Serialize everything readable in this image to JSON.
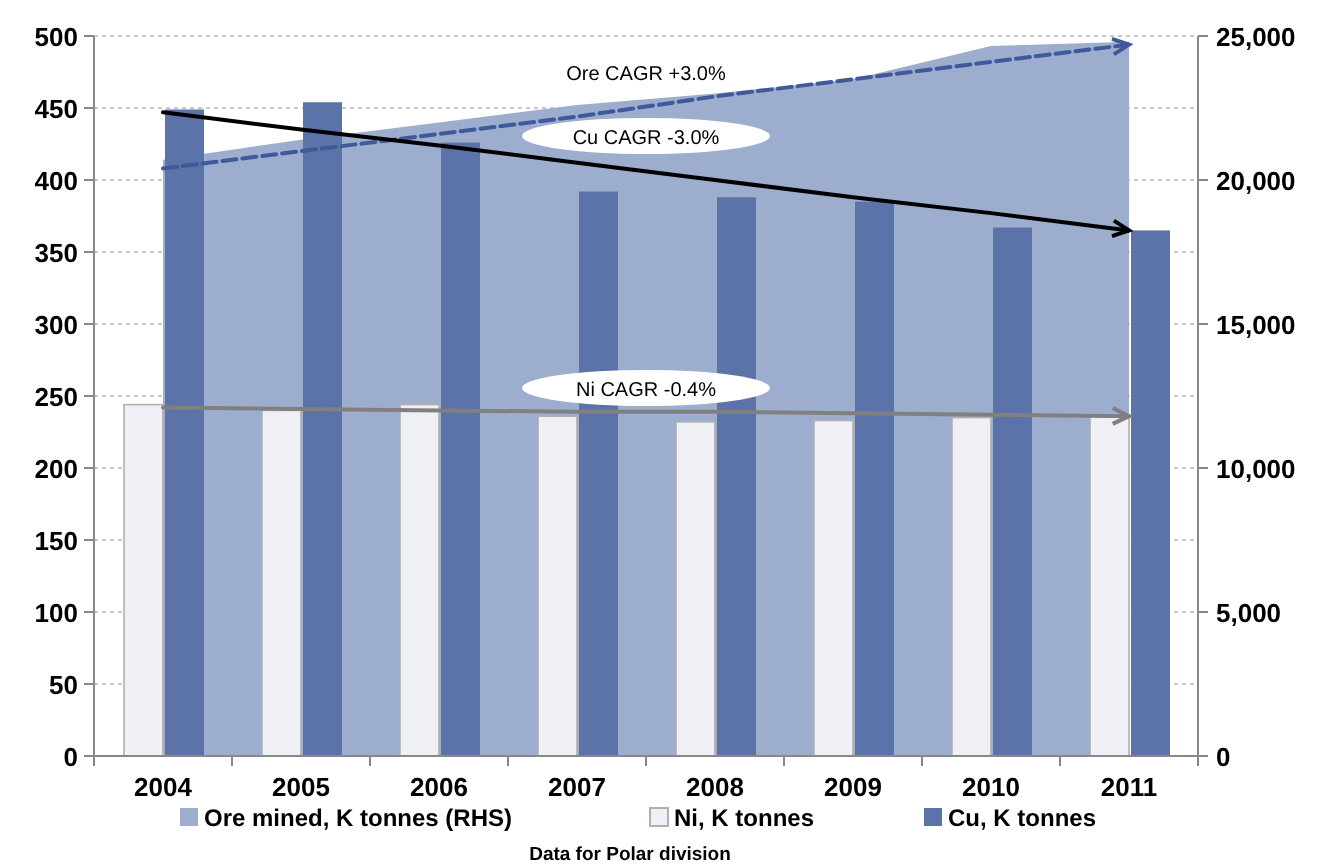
{
  "chart_data": {
    "type": "bar",
    "categories": [
      "2004",
      "2005",
      "2006",
      "2007",
      "2008",
      "2009",
      "2010",
      "2011"
    ],
    "series": [
      {
        "name": "Ore mined, K tonnes (RHS)",
        "type": "area",
        "axis": "y2",
        "color": "#9dadcd",
        "values": [
          20700,
          21400,
          22000,
          22600,
          23000,
          23500,
          24650,
          24800
        ]
      },
      {
        "name": "Ni, K tonnes",
        "color": "#eff0f6",
        "values": [
          244,
          240,
          244,
          236,
          232,
          233,
          235,
          236
        ]
      },
      {
        "name": "Cu, K tonnes",
        "color": "#5b73a8",
        "values": [
          449,
          454,
          426,
          392,
          388,
          385,
          367,
          365
        ]
      },
      {
        "type": "line",
        "axis": "y2",
        "color": "#3f5a9a",
        "line_style": "dashed",
        "values": [
          20400,
          21000,
          21600,
          22200,
          22900,
          23500,
          24100,
          24700
        ]
      },
      {
        "type": "line",
        "color": "#000000",
        "line_style": "solid",
        "values": [
          447,
          435,
          424,
          412,
          400,
          388,
          377,
          365
        ]
      },
      {
        "type": "line",
        "color": "#808080",
        "line_style": "solid",
        "values": [
          242,
          241,
          240,
          239,
          239,
          238,
          237,
          236
        ]
      }
    ],
    "ylim": [
      0,
      500
    ],
    "yticks": [
      0,
      50,
      100,
      150,
      200,
      250,
      300,
      350,
      400,
      450,
      500
    ],
    "y2lim": [
      0,
      25000
    ],
    "y2ticks": [
      {
        "value": 0,
        "label": "0"
      },
      {
        "value": 5000,
        "label": "5,000"
      },
      {
        "value": 10000,
        "label": "10,000"
      },
      {
        "value": 15000,
        "label": "15,000"
      },
      {
        "value": 20000,
        "label": "20,000"
      },
      {
        "value": 25000,
        "label": "25,000"
      }
    ],
    "grid": "y",
    "legend": "bottom",
    "annotations": [
      "Ore CAGR +3.0%",
      "Cu CAGR -3.0%",
      "Ni CAGR -0.4%",
      "Data for Polar division"
    ]
  }
}
